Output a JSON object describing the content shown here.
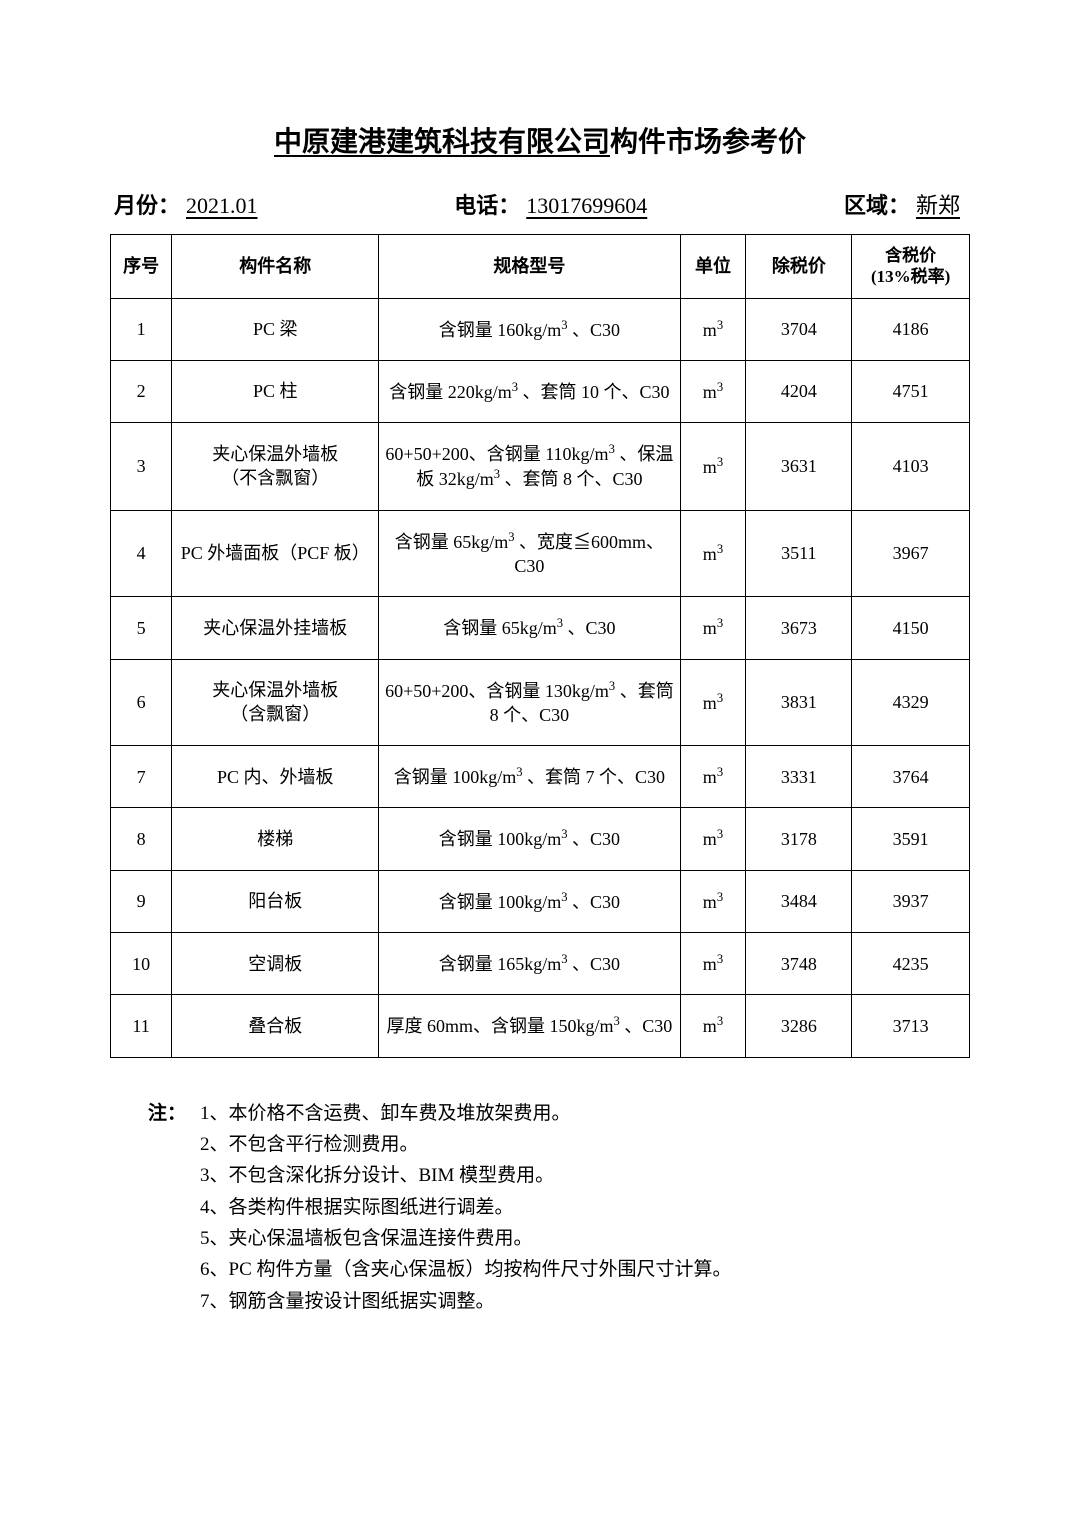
{
  "title_prefix": "中原建港建筑科技有限公司",
  "title_suffix": "构件市场参考价",
  "meta": {
    "month_label": "月份：",
    "month_value": "2021.01",
    "phone_label": "电话：",
    "phone_value": "13017699604",
    "region_label": "区域：",
    "region_value": "新郑"
  },
  "columns": {
    "seq": "序号",
    "name": "构件名称",
    "spec": "规格型号",
    "unit": "单位",
    "price_ex": "除税价",
    "price_tax_l1": "含税价",
    "price_tax_l2": "(13%税率)"
  },
  "unit_text": "m³",
  "rows": [
    {
      "seq": "1",
      "name": "PC 梁",
      "spec": "含钢量 160kg/m³ 、C30",
      "price_ex": "3704",
      "price_tax": "4186"
    },
    {
      "seq": "2",
      "name": "PC 柱",
      "spec": "含钢量 220kg/m³ 、套筒 10 个、C30",
      "price_ex": "4204",
      "price_tax": "4751"
    },
    {
      "seq": "3",
      "name": "夹心保温外墙板\n（不含飘窗）",
      "spec": "60+50+200、含钢量 110kg/m³ 、保温板 32kg/m³ 、套筒 8 个、C30",
      "price_ex": "3631",
      "price_tax": "4103"
    },
    {
      "seq": "4",
      "name": "PC 外墙面板（PCF 板）",
      "spec": "含钢量 65kg/m³ 、宽度≦600mm、C30",
      "price_ex": "3511",
      "price_tax": "3967"
    },
    {
      "seq": "5",
      "name": "夹心保温外挂墙板",
      "spec": "含钢量 65kg/m³ 、C30",
      "price_ex": "3673",
      "price_tax": "4150"
    },
    {
      "seq": "6",
      "name": "夹心保温外墙板\n（含飘窗）",
      "spec": "60+50+200、含钢量 130kg/m³ 、套筒 8 个、C30",
      "price_ex": "3831",
      "price_tax": "4329"
    },
    {
      "seq": "7",
      "name": "PC 内、外墙板",
      "spec": "含钢量 100kg/m³ 、套筒 7 个、C30",
      "price_ex": "3331",
      "price_tax": "3764"
    },
    {
      "seq": "8",
      "name": "楼梯",
      "spec": "含钢量 100kg/m³ 、C30",
      "price_ex": "3178",
      "price_tax": "3591"
    },
    {
      "seq": "9",
      "name": "阳台板",
      "spec": "含钢量 100kg/m³ 、C30",
      "price_ex": "3484",
      "price_tax": "3937"
    },
    {
      "seq": "10",
      "name": "空调板",
      "spec": "含钢量 165kg/m³ 、C30",
      "price_ex": "3748",
      "price_tax": "4235"
    },
    {
      "seq": "11",
      "name": "叠合板",
      "spec": "厚度 60mm、含钢量 150kg/m³ 、C30",
      "price_ex": "3286",
      "price_tax": "3713"
    }
  ],
  "notes": {
    "label": "注：",
    "items": [
      "1、本价格不含运费、卸车费及堆放架费用。",
      "2、不包含平行检测费用。",
      "3、不包含深化拆分设计、BIM 模型费用。",
      "4、各类构件根据实际图纸进行调差。",
      "5、夹心保温墙板包含保温连接件费用。",
      "6、PC 构件方量（含夹心保温板）均按构件尺寸外围尺寸计算。",
      "7、钢筋含量按设计图纸据实调整。"
    ]
  },
  "styling": {
    "page_bg": "#ffffff",
    "text_color": "#000000",
    "border_color": "#000000",
    "title_fontsize": 28,
    "meta_fontsize": 22,
    "cell_fontsize": 18,
    "notes_fontsize": 19,
    "border_width": 1.5
  }
}
